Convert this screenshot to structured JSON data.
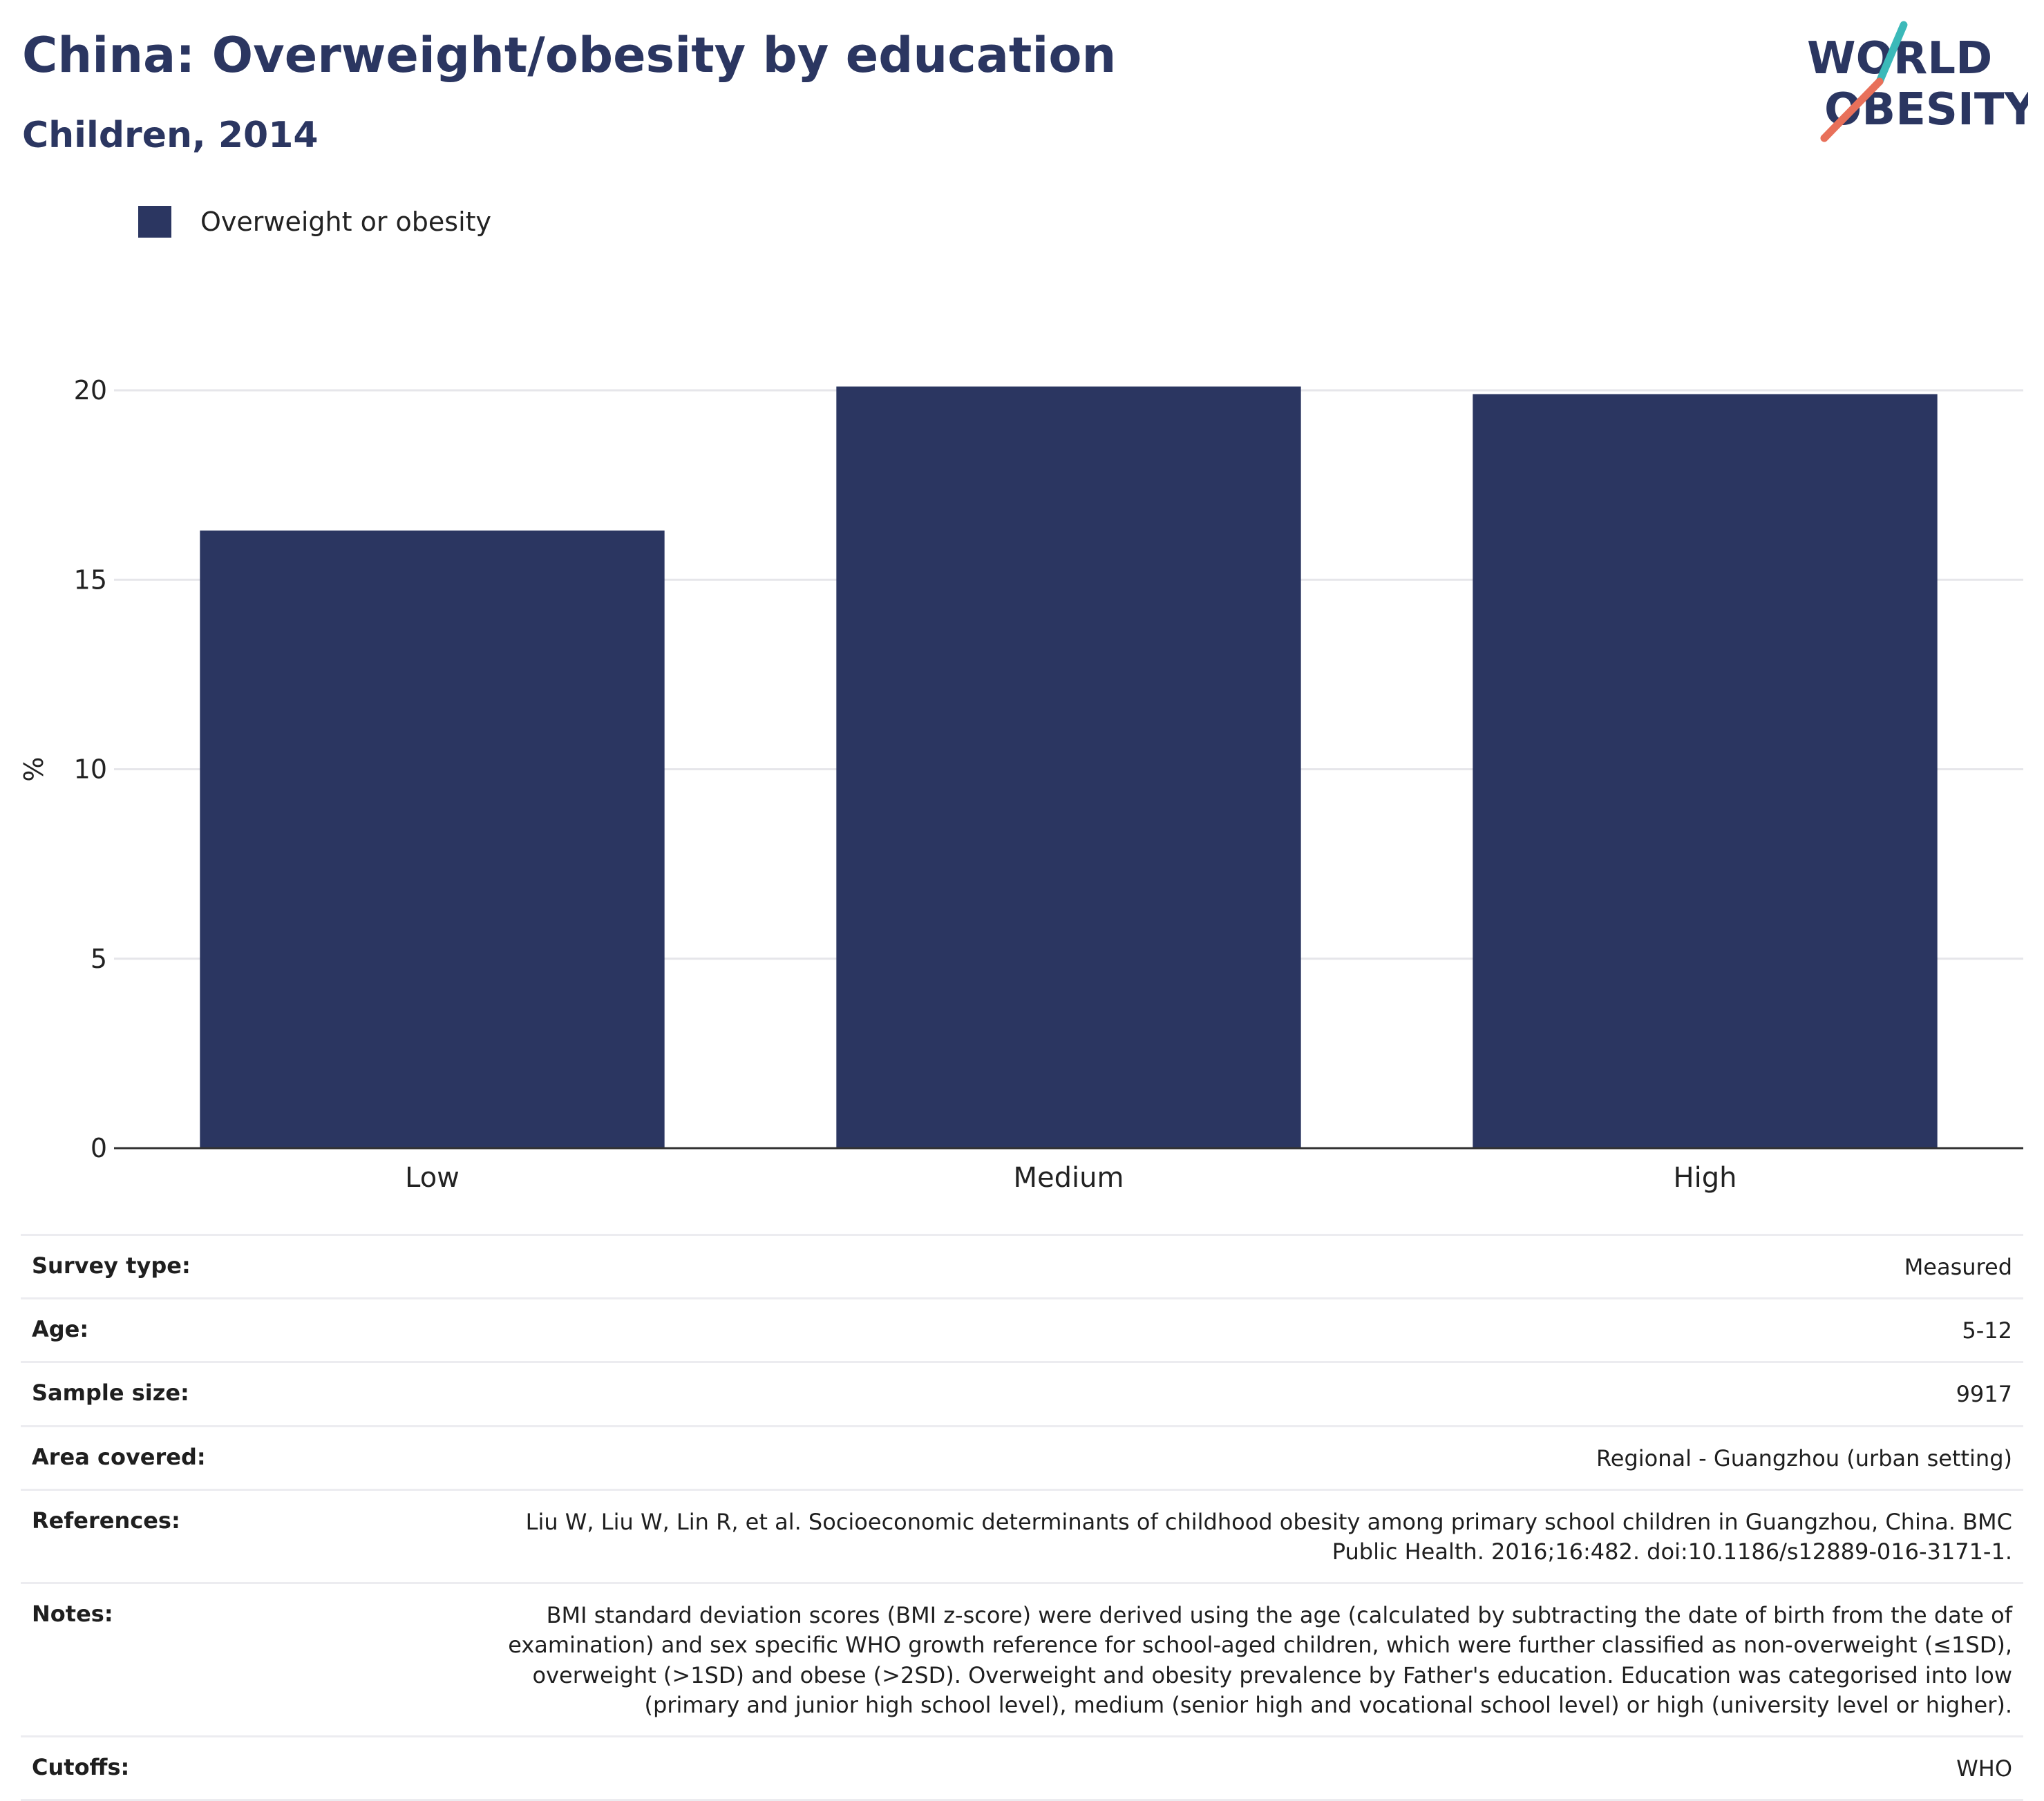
{
  "header": {
    "title": "China: Overweight/obesity by education",
    "subtitle": "Children, 2014"
  },
  "logo": {
    "line1": "WORLD",
    "line2": "OBESITY",
    "colors": {
      "text": "#2b3661",
      "slash_teal": "#3bb9b9",
      "slash_coral": "#e8705a"
    }
  },
  "chart_data": {
    "type": "bar",
    "categories": [
      "Low",
      "Medium",
      "High"
    ],
    "series": [
      {
        "name": "Overweight or obesity",
        "values": [
          16.3,
          20.1,
          19.9
        ],
        "color": "#2b3661"
      }
    ],
    "ylabel": "%",
    "xlabel": "",
    "ylim": [
      0,
      20
    ],
    "yticks": [
      0,
      5,
      10,
      15,
      20
    ],
    "grid": true,
    "legend": "top-left"
  },
  "meta": [
    {
      "key": "Survey type:",
      "value": "Measured"
    },
    {
      "key": "Age:",
      "value": "5-12"
    },
    {
      "key": "Sample size:",
      "value": "9917"
    },
    {
      "key": "Area covered:",
      "value": "Regional - Guangzhou (urban setting)"
    },
    {
      "key": "References:",
      "value": "Liu W, Liu W, Lin R, et al. Socioeconomic determinants of childhood obesity among primary school children in Guangzhou, China. BMC Public Health. 2016;16:482. doi:10.1186/s12889-016-3171-1."
    },
    {
      "key": "Notes:",
      "value": "BMI standard deviation scores (BMI z-score) were derived using the age (calculated by subtracting the date of birth from the date of examination) and sex specific WHO growth reference for school-aged children, which were further classified as non-overweight (≤1SD), overweight (>1SD) and obese (>2SD). Overweight and obesity prevalence by Father's education. Education was categorised into low (primary and junior high school level), medium (senior high and vocational school level) or high (university level or higher)."
    },
    {
      "key": "Cutoffs:",
      "value": "WHO"
    }
  ]
}
